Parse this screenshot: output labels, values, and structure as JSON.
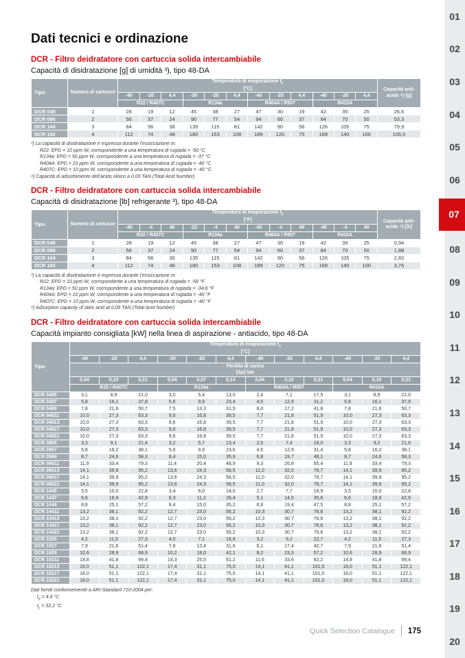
{
  "page_title": "Dati tecnici e ordinazione",
  "colors": {
    "accent_red": "#d40b11",
    "table_header_gray": "#a2acb2",
    "table_header_dark": "#95a0a7",
    "row_alternate": "#e3e7e9",
    "sidebar_background": "#e9ebec"
  },
  "sidebar": {
    "tabs": [
      "01",
      "02",
      "03",
      "04",
      "05",
      "06",
      "07",
      "08",
      "09",
      "10",
      "11",
      "12",
      "13",
      "14",
      "15",
      "16",
      "17",
      "18",
      "19",
      "20"
    ],
    "active": "07"
  },
  "footer": {
    "label": "Quick Selection Catalogue",
    "page_number": "175"
  },
  "notes": {
    "title": "Dati forniti conformemente a ARI-Standard 710-2004 per:",
    "lines": [
      {
        "pre": "t",
        "sub": "e",
        "post": " = 4,4 °C"
      },
      {
        "pre": "t",
        "sub": "c",
        "post": " = 32,2 °C"
      }
    ]
  },
  "sections": [
    {
      "heading": "DCR - Filtro deidratatore con cartuccia solida intercambiabile",
      "subtitle": "Capacità di disidratazione [g] di umidità ³), tipo 48-DA",
      "table": {
        "tipo_label": "Tipo",
        "cartridges_label": "Numero di cartucce",
        "temp": {
          "pre": "Temperatura di evaporazione t",
          "sub": "e",
          "unit": "[°C]"
        },
        "temp_cols": [
          "-40",
          "-20",
          "4,4",
          "-30",
          "-20",
          "4,4",
          "-40",
          "-20",
          "4,4",
          "-40",
          "-20",
          "4,4"
        ],
        "refrigerants": [
          "R22 / R407C",
          "R134a",
          "R404A / R507",
          "R410A"
        ],
        "capacity_label": "Capacità anti-acido ⁴) [g]",
        "rows": [
          {
            "tipo": "DCR 048",
            "cartucce": "1",
            "values": [
              "28",
              "19",
              "12",
              "45",
              "38",
              "27",
              "47",
              "30",
              "19",
              "42",
              "35",
              "25"
            ],
            "capacity": "26,6"
          },
          {
            "tipo": "DCR 096",
            "cartucce": "2",
            "values": [
              "56",
              "37",
              "24",
              "90",
              "77",
              "54",
              "94",
              "60",
              "37",
              "84",
              "70",
              "50"
            ],
            "capacity": "53,3"
          },
          {
            "tipo": "DCR 144",
            "cartucce": "3",
            "values": [
              "84",
              "56",
              "36",
              "135",
              "115",
              "81",
              "142",
              "90",
              "56",
              "126",
              "105",
              "75"
            ],
            "capacity": "79,9"
          },
          {
            "tipo": "DCR 192",
            "cartucce": "4",
            "values": [
              "112",
              "74",
              "48",
              "180",
              "153",
              "108",
              "189",
              "120",
              "75",
              "168",
              "140",
              "100"
            ],
            "capacity": "106,5"
          }
        ]
      },
      "footnotes": [
        {
          "indent": 0,
          "text": "³) La capacità di disidratazione è espressa durante l’essiccazione in:"
        },
        {
          "indent": 1,
          "text": "R22: EPD = 10 ppm W, corrispondente a una temperatura di rugiada = -50 °C"
        },
        {
          "indent": 1,
          "text": "R134a: EPD = 50 ppm W, corrispondente a una temperatura di rugiada = -37 °C"
        },
        {
          "indent": 1,
          "text": "R404A: EPD = 10 ppm W, corrispondente a una temperatura di rugiada = -40 °C"
        },
        {
          "indent": 1,
          "text": "R407C: EPD = 10 ppm W, corrispondente a una temperatura di rugiada = -40 °C"
        },
        {
          "indent": 0,
          "text": "⁴) Capacità di adsorbimento dell’acido oleico a 0,05 TAN (Total Acid Number)"
        }
      ]
    },
    {
      "heading": "DCR - Filtro deidratatore con cartuccia solida intercambiabile",
      "subtitle": "Capacità di disidratazione [lb] refrigerante ³), tipo 48-DA",
      "table": {
        "tipo_label": "Tipo",
        "cartridges_label": "Numero di cartucce",
        "temp": {
          "pre": "Temperatura di evaporazione t",
          "sub": "e",
          "unit": "[°F]"
        },
        "temp_cols": [
          "-40",
          "-4",
          "40",
          "-22",
          "-4",
          "40",
          "-40",
          "-4",
          "40",
          "-40",
          "-4",
          "40"
        ],
        "refrigerants": [
          "R22 / R407C",
          "R134a",
          "R404A / R507",
          "R410A"
        ],
        "capacity_label": "Capacità anti-acido ⁴) [lb]",
        "rows": [
          {
            "tipo": "DCR 048",
            "cartucce": "1",
            "values": [
              "28",
              "19",
              "12",
              "45",
              "38",
              "27",
              "47",
              "30",
              "19",
              "42",
              "35",
              "25"
            ],
            "capacity": "0,94"
          },
          {
            "tipo": "DCR 096",
            "cartucce": "2",
            "values": [
              "56",
              "37",
              "24",
              "90",
              "77",
              "54",
              "94",
              "60",
              "37",
              "84",
              "70",
              "50"
            ],
            "capacity": "1,88"
          },
          {
            "tipo": "DCR 144",
            "cartucce": "3",
            "values": [
              "84",
              "56",
              "36",
              "135",
              "115",
              "81",
              "142",
              "90",
              "56",
              "126",
              "105",
              "75"
            ],
            "capacity": "2,82"
          },
          {
            "tipo": "DCR 192",
            "cartucce": "4",
            "values": [
              "112",
              "74",
              "48",
              "180",
              "153",
              "108",
              "189",
              "120",
              "75",
              "168",
              "140",
              "100"
            ],
            "capacity": "3,76"
          }
        ]
      },
      "footnotes": [
        {
          "indent": 0,
          "text": "³) La capacità di disidratazione è espressa durante l’essiccazione in:"
        },
        {
          "indent": 1,
          "text": "R22: EPD = 10 ppm W, corrispondente a una temperatura di rugiada = -58 °F"
        },
        {
          "indent": 1,
          "text": "R134a: EPD = 50 ppm W, corrispondente a una temperatura di rugiada = -34,6 °F"
        },
        {
          "indent": 1,
          "text": "R404A: EPD = 10 ppm W, corrispondente a una temperatura di rugiada = -40 °F"
        },
        {
          "indent": 1,
          "text": "R407C: EPD = 10 ppm W, corrispondente a una temperatura di rugiada = -40 °F"
        },
        {
          "indent": 0,
          "text": "⁴) Adsorption capacity of oleic acid at 0,05 TAN (Total Acid Number)"
        }
      ]
    },
    {
      "heading": "DCR - Filtro deidratatore con cartuccia solida intercambiabile",
      "subtitle": "Capacità impianto consigliata [kW] nella linea di aspirazione - antiacido, tipo 48-DA",
      "table": {
        "tipo_label": "Tipo",
        "temp": {
          "pre": "Temperatura di evaporazione t",
          "sub": "e",
          "unit": "[°C]"
        },
        "temp_cols": [
          "-40",
          "-20",
          "4,4",
          "-30",
          "-20",
          "4,4",
          "-40",
          "-20",
          "4,4",
          "-40",
          "-20",
          "4,4"
        ],
        "pressure": {
          "label": "Perdita di carico",
          "unit": "[Δp] bar"
        },
        "pressure_cols": [
          "0,04",
          "0,10",
          "0,21",
          "0,04",
          "0,07",
          "0,14",
          "0,04",
          "0,10",
          "0,21",
          "0,04",
          "0,10",
          "0,21"
        ],
        "refrigerants": [
          "R22 / R407C",
          "R134a",
          "R404A / R507",
          "R410A"
        ],
        "rows": [
          {
            "tipo": "DCR 0485",
            "values": [
              "3,1",
              "8,9",
              "21,0",
              "3,0",
              "5,4",
              "13,0",
              "2,4",
              "7,1",
              "17,5",
              "3,1",
              "8,9",
              "21,0"
            ]
          },
          {
            "tipo": "DCR 0487",
            "values": [
              "5,8",
              "16,1",
              "37,8",
              "5,6",
              "9,9",
              "23,4",
              "4,5",
              "12,9",
              "31,2",
              "5,8",
              "16,1",
              "37,8"
            ]
          },
          {
            "tipo": "DCR 0489",
            "values": [
              "7,8",
              "21,6",
              "50,7",
              "7,5",
              "13,3",
              "31,5",
              "6,0",
              "17,2",
              "41,8",
              "7,8",
              "21,6",
              "50,7"
            ]
          },
          {
            "tipo": "DCR 04811",
            "values": [
              "10,0",
              "27,3",
              "63,3",
              "9,6",
              "16,8",
              "39,5",
              "7,7",
              "21,8",
              "51,9",
              "10,0",
              "27,3",
              "63,3"
            ]
          },
          {
            "tipo": "DCR 04813",
            "values": [
              "10,0",
              "27,3",
              "63,3",
              "9,6",
              "16,8",
              "39,5",
              "7,7",
              "21,8",
              "51,9",
              "10,0",
              "27,3",
              "63,3"
            ]
          },
          {
            "tipo": "DCR 04817",
            "values": [
              "10,0",
              "27,3",
              "63,3",
              "9,6",
              "16,8",
              "39,5",
              "7,7",
              "21,8",
              "51,9",
              "10,0",
              "27,3",
              "63,3"
            ]
          },
          {
            "tipo": "DCR 04821",
            "values": [
              "10,0",
              "27,3",
              "63,3",
              "9,6",
              "16,8",
              "39,5",
              "7,7",
              "21,8",
              "51,9",
              "10,0",
              "27,3",
              "63,3"
            ]
          },
          {
            "tipo": "DCR 0965",
            "values": [
              "3,3",
              "9,1",
              "21,4",
              "3,2",
              "5,7",
              "13,4",
              "2,5",
              "7,4",
              "18,0",
              "3,3",
              "9,2",
              "21,6"
            ]
          },
          {
            "tipo": "DCR 0967",
            "values": [
              "5,8",
              "16,2",
              "38,1",
              "5,6",
              "9,9",
              "23,6",
              "4,5",
              "12,9",
              "31,4",
              "5,8",
              "16,2",
              "38,1"
            ]
          },
          {
            "tipo": "DCR 0969",
            "values": [
              "8,7",
              "24,6",
              "58,3",
              "8,4",
              "15,0",
              "35,9",
              "6,8",
              "19,7",
              "48,1",
              "8,7",
              "24,6",
              "58,3"
            ]
          },
          {
            "tipo": "DCR 09611",
            "values": [
              "11,9",
              "33,4",
              "79,3",
              "11,4",
              "20,4",
              "48,9",
              "9,3",
              "26,8",
              "65,4",
              "11,9",
              "33,4",
              "79,3"
            ]
          },
          {
            "tipo": "DCR 09613",
            "values": [
              "14,1",
              "39,9",
              "95,2",
              "13,6",
              "24,3",
              "58,5",
              "11,0",
              "32,0",
              "78,7",
              "14,1",
              "39,9",
              "95,2"
            ]
          },
          {
            "tipo": "DCR 09617",
            "values": [
              "14,1",
              "39,9",
              "95,2",
              "13,6",
              "24,3",
              "58,5",
              "11,0",
              "32,0",
              "78,7",
              "14,1",
              "39,9",
              "95,2"
            ]
          },
          {
            "tipo": "DCR 09621",
            "values": [
              "14,1",
              "39,9",
              "95,2",
              "13,6",
              "24,3",
              "58,5",
              "11,0",
              "32,0",
              "78,7",
              "14,1",
              "39,9",
              "95,2"
            ]
          },
          {
            "tipo": "DCR 1445",
            "values": [
              "3,5",
              "10,0",
              "22,8",
              "3,4",
              "6,0",
              "14,0",
              "2,7",
              "7,7",
              "18,9",
              "3,5",
              "10,0",
              "22,8"
            ]
          },
          {
            "tipo": "DCR 1447",
            "values": [
              "6,6",
              "18,9",
              "42,9",
              "6,3",
              "11,2",
              "26,4",
              "5,1",
              "14,5",
              "35,6",
              "6,6",
              "18,9",
              "42,9"
            ]
          },
          {
            "tipo": "DCR 1449",
            "values": [
              "8,8",
              "25,1",
              "57,2",
              "8,4",
              "15,0",
              "35,2",
              "6,8",
              "19,4",
              "47,5",
              "8,8",
              "25,1",
              "57,2"
            ]
          },
          {
            "tipo": "DCR 14411",
            "values": [
              "13,2",
              "38,1",
              "92,2",
              "12,7",
              "23,0",
              "56,2",
              "10,3",
              "30,7",
              "76,6",
              "13,2",
              "38,1",
              "92,2"
            ]
          },
          {
            "tipo": "DCR 14413",
            "values": [
              "13,2",
              "38,1",
              "92,2",
              "12,7",
              "23,0",
              "56,2",
              "10,3",
              "30,7",
              "76,6",
              "13,2",
              "38,1",
              "92,2"
            ]
          },
          {
            "tipo": "DCR 14417",
            "values": [
              "13,2",
              "38,1",
              "92,2",
              "12,7",
              "23,0",
              "56,2",
              "10,3",
              "30,7",
              "76,6",
              "13,2",
              "38,1",
              "92,2"
            ]
          },
          {
            "tipo": "DCR 14421",
            "values": [
              "13,2",
              "38,1",
              "92,2",
              "12,7",
              "23,0",
              "56,2",
              "10,3",
              "30,7",
              "76,6",
              "13,2",
              "38,1",
              "92,2"
            ]
          },
          {
            "tipo": "DCR 1925",
            "values": [
              "4,2",
              "11,5",
              "27,3",
              "4,0",
              "7,1",
              "16,8",
              "3,2",
              "9,2",
              "22,7",
              "4,2",
              "11,5",
              "27,3"
            ]
          },
          {
            "tipo": "DCR 1927",
            "values": [
              "7,9",
              "21,6",
              "51,4",
              "7,6",
              "13,4",
              "31,6",
              "6,1",
              "17,4",
              "42,7",
              "7,9",
              "21,6",
              "51,4"
            ]
          },
          {
            "tipo": "DCR 1929",
            "values": [
              "10,6",
              "28,9",
              "68,9",
              "10,2",
              "18,0",
              "42,1",
              "8,2",
              "23,3",
              "57,2",
              "10,6",
              "28,9",
              "68,9"
            ]
          },
          {
            "tipo": "DCR 19211",
            "values": [
              "14,8",
              "41,8",
              "99,4",
              "14,3",
              "25,5",
              "61,2",
              "11,6",
              "33,6",
              "82,2",
              "14,8",
              "41,8",
              "99,4"
            ]
          },
          {
            "tipo": "DCR 19213",
            "values": [
              "18,0",
              "51,1",
              "122,1",
              "17,4",
              "31,1",
              "75,0",
              "14,1",
              "41,1",
              "101,0",
              "18,0",
              "51,1",
              "122,1"
            ]
          },
          {
            "tipo": "DCR 19217",
            "values": [
              "18,0",
              "51,1",
              "122,1",
              "17,4",
              "31,1",
              "75,0",
              "14,1",
              "41,1",
              "101,0",
              "18,0",
              "51,1",
              "122,1"
            ]
          },
          {
            "tipo": "DCR 19221",
            "values": [
              "18,0",
              "51,1",
              "122,1",
              "17,4",
              "31,1",
              "75,0",
              "14,1",
              "41,1",
              "101,0",
              "18,0",
              "51,1",
              "122,1"
            ]
          }
        ]
      },
      "footnotes": []
    }
  ]
}
